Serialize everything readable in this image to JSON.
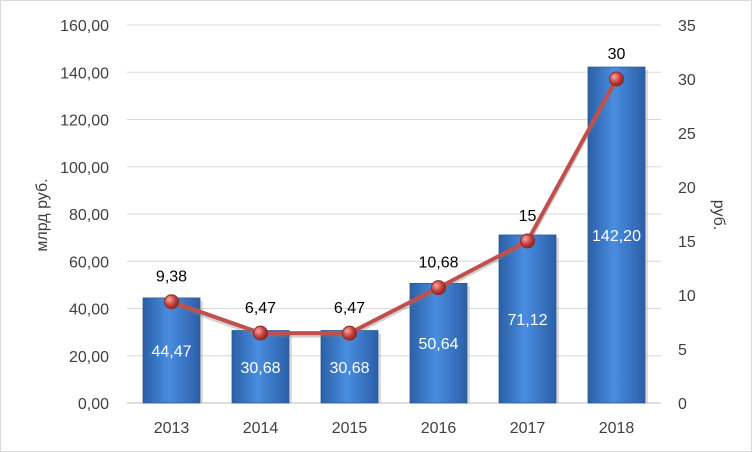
{
  "chart_data": {
    "type": "bar",
    "categories": [
      "2013",
      "2014",
      "2015",
      "2016",
      "2017",
      "2018"
    ],
    "series": [
      {
        "type": "bar",
        "axis": "left",
        "values": [
          44.47,
          30.68,
          30.68,
          50.64,
          71.12,
          142.2
        ],
        "labels": [
          "44,47",
          "30,68",
          "30,68",
          "50,64",
          "71,12",
          "142,20"
        ],
        "color": "#3a78c8"
      },
      {
        "type": "line",
        "axis": "right",
        "values": [
          9.38,
          6.47,
          6.47,
          10.68,
          15,
          30
        ],
        "labels": [
          "9,38",
          "6,47",
          "6,47",
          "10,68",
          "15",
          "30"
        ],
        "color": "#c0504d"
      }
    ],
    "ylabel": "млрд руб.",
    "y2label": "руб.",
    "ylim": [
      0,
      160
    ],
    "y2lim": [
      0,
      35
    ],
    "yticks": [
      "0,00",
      "20,00",
      "40,00",
      "60,00",
      "80,00",
      "100,00",
      "120,00",
      "140,00",
      "160,00"
    ],
    "y2ticks": [
      "0",
      "5",
      "10",
      "15",
      "20",
      "25",
      "30",
      "35"
    ],
    "grid": true,
    "legend": "none"
  }
}
